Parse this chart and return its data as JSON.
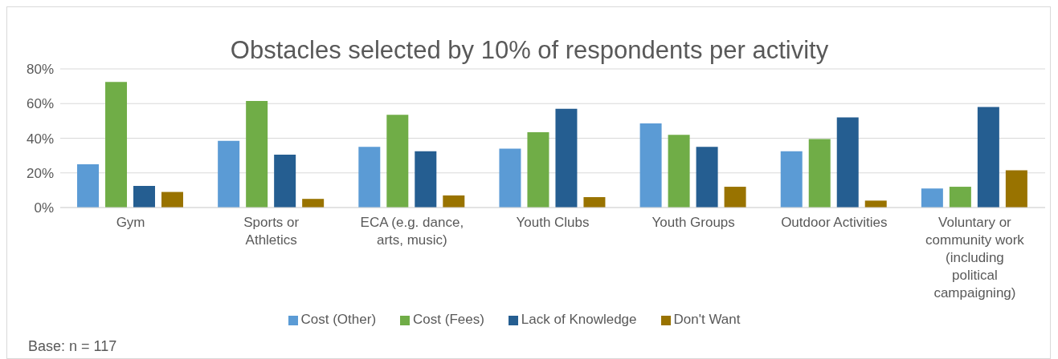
{
  "chart_data": {
    "type": "bar",
    "title": "Obstacles selected by 10% of respondents per activity",
    "categories": [
      "Gym",
      "Sports or Athletics",
      "ECA (e.g. dance, arts, music)",
      "Youth Clubs",
      "Youth Groups",
      "Outdoor Activities",
      "Voluntary or community work (including political campaigning)"
    ],
    "series": [
      {
        "name": "Cost (Other)",
        "color": "#5b9bd5",
        "values": [
          25,
          38.5,
          35,
          34,
          48.5,
          32.5,
          11
        ]
      },
      {
        "name": "Cost (Fees)",
        "color": "#70ad47",
        "values": [
          72.5,
          61.5,
          53.5,
          43.5,
          42,
          39.5,
          12
        ]
      },
      {
        "name": "Lack of Knowledge",
        "color": "#255e91",
        "values": [
          12.5,
          30.5,
          32.5,
          57,
          35,
          52,
          58
        ]
      },
      {
        "name": "Don't Want",
        "color": "#997300",
        "values": [
          9,
          5,
          7,
          6,
          12,
          4,
          21.5
        ]
      }
    ],
    "ylim": [
      0,
      80
    ],
    "yticks": [
      {
        "value": 0,
        "label": "0%"
      },
      {
        "value": 20,
        "label": "20%"
      },
      {
        "value": 40,
        "label": "40%"
      },
      {
        "value": 60,
        "label": "60%"
      },
      {
        "value": 80,
        "label": "80%"
      }
    ],
    "grid": "y",
    "legend": "bottom",
    "annotations": [
      "Base: n =  117"
    ]
  }
}
